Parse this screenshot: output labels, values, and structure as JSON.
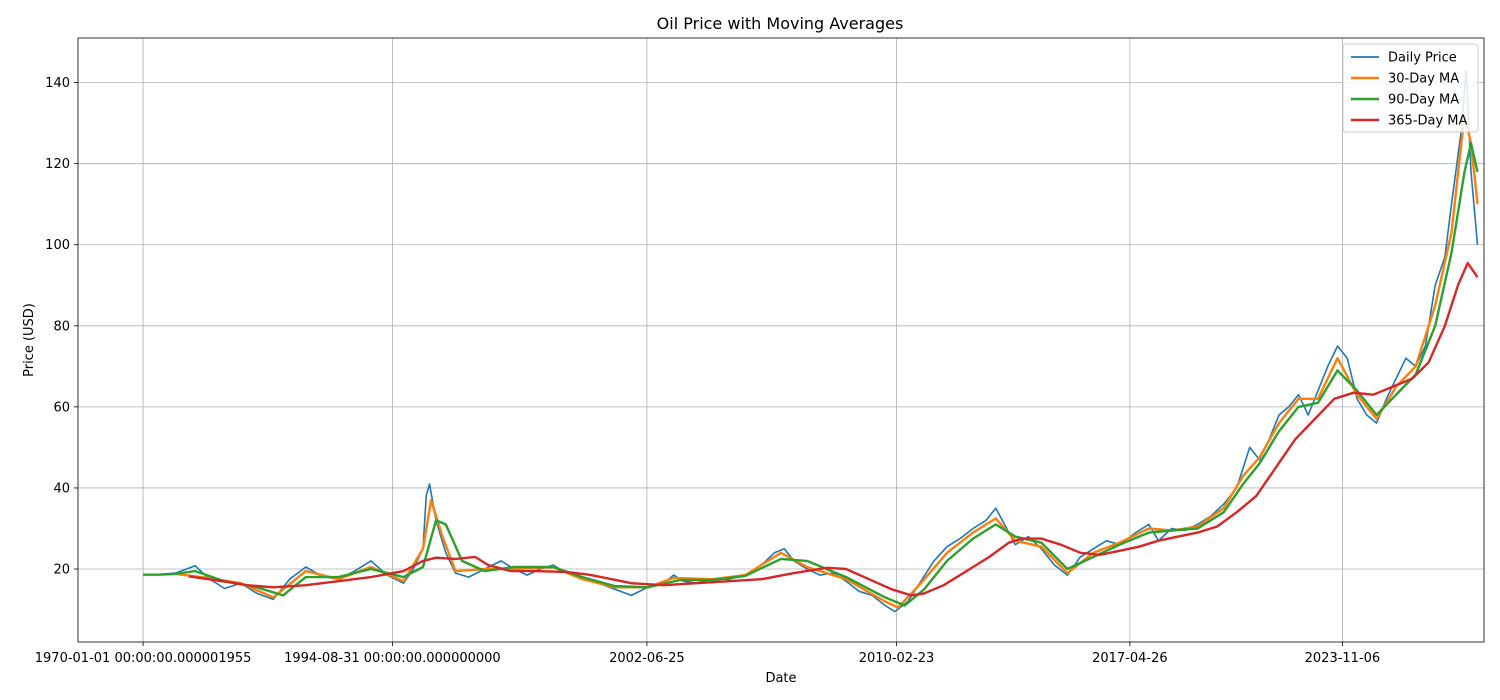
{
  "chart_data": {
    "type": "line",
    "title": "Oil Price with Moving Averages",
    "xlabel": "Date",
    "ylabel": "Price (USD)",
    "x_tick_labels": [
      "1970-01-01 00:00:00.000001955",
      "1994-08-31 00:00:00.000000000",
      "2002-06-25",
      "2010-02-23",
      "2017-04-26",
      "2023-11-06"
    ],
    "x_tick_values": [
      1987.0,
      1994.66,
      2002.48,
      2010.15,
      2017.32,
      2023.85
    ],
    "xlim": [
      1985.0,
      2028.2
    ],
    "ylim": [
      2,
      151
    ],
    "y_ticks": [
      20,
      40,
      60,
      80,
      100,
      120,
      140
    ],
    "grid": true,
    "legend_position": "top-right",
    "series": [
      {
        "name": "Daily Price",
        "color": "#1f77b4",
        "points": [
          [
            1987.0,
            18.6
          ],
          [
            1987.5,
            18.7
          ],
          [
            1988.0,
            19.0
          ],
          [
            1988.6,
            20.8
          ],
          [
            1989.0,
            17.8
          ],
          [
            1989.5,
            15.2
          ],
          [
            1990.0,
            16.5
          ],
          [
            1990.5,
            14.0
          ],
          [
            1991.0,
            12.5
          ],
          [
            1991.5,
            17.5
          ],
          [
            1992.0,
            20.5
          ],
          [
            1992.5,
            18.2
          ],
          [
            1993.0,
            17.5
          ],
          [
            1993.5,
            19.5
          ],
          [
            1994.0,
            22.0
          ],
          [
            1994.5,
            18.5
          ],
          [
            1995.0,
            16.5
          ],
          [
            1995.3,
            20.0
          ],
          [
            1995.6,
            25.0
          ],
          [
            1995.7,
            38.0
          ],
          [
            1995.8,
            41.0
          ],
          [
            1996.0,
            32.0
          ],
          [
            1996.3,
            24.0
          ],
          [
            1996.6,
            19.0
          ],
          [
            1997.0,
            18.0
          ],
          [
            1997.5,
            20.0
          ],
          [
            1998.0,
            22.0
          ],
          [
            1998.4,
            20.0
          ],
          [
            1998.8,
            18.5
          ],
          [
            1999.2,
            20.0
          ],
          [
            1999.6,
            21.0
          ],
          [
            2000.0,
            19.0
          ],
          [
            2000.5,
            17.5
          ],
          [
            2001.0,
            16.5
          ],
          [
            2001.5,
            15.0
          ],
          [
            2002.0,
            13.5
          ],
          [
            2002.5,
            15.5
          ],
          [
            2003.0,
            16.5
          ],
          [
            2003.3,
            18.5
          ],
          [
            2003.6,
            17.0
          ],
          [
            2004.0,
            16.5
          ],
          [
            2004.5,
            17.5
          ],
          [
            2005.0,
            17.5
          ],
          [
            2005.5,
            18.5
          ],
          [
            2006.0,
            21.0
          ],
          [
            2006.4,
            24.0
          ],
          [
            2006.7,
            25.0
          ],
          [
            2007.0,
            22.0
          ],
          [
            2007.4,
            20.0
          ],
          [
            2007.8,
            18.5
          ],
          [
            2008.2,
            19.0
          ],
          [
            2008.6,
            17.0
          ],
          [
            2009.0,
            14.5
          ],
          [
            2009.4,
            13.5
          ],
          [
            2009.8,
            11.0
          ],
          [
            2010.1,
            9.5
          ],
          [
            2010.5,
            12.0
          ],
          [
            2010.9,
            17.0
          ],
          [
            2011.3,
            22.0
          ],
          [
            2011.7,
            25.5
          ],
          [
            2012.1,
            27.5
          ],
          [
            2012.5,
            30.0
          ],
          [
            2012.9,
            32.0
          ],
          [
            2013.2,
            35.0
          ],
          [
            2013.5,
            30.5
          ],
          [
            2013.8,
            26.0
          ],
          [
            2014.2,
            28.0
          ],
          [
            2014.6,
            25.0
          ],
          [
            2015.0,
            21.0
          ],
          [
            2015.4,
            18.5
          ],
          [
            2015.8,
            23.0
          ],
          [
            2016.2,
            25.0
          ],
          [
            2016.6,
            27.0
          ],
          [
            2017.0,
            26.0
          ],
          [
            2017.5,
            29.0
          ],
          [
            2017.9,
            31.0
          ],
          [
            2018.2,
            27.0
          ],
          [
            2018.6,
            30.0
          ],
          [
            2019.0,
            29.5
          ],
          [
            2019.4,
            31.0
          ],
          [
            2019.8,
            33.0
          ],
          [
            2020.2,
            36.0
          ],
          [
            2020.6,
            40.0
          ],
          [
            2020.8,
            45.0
          ],
          [
            2021.0,
            50.0
          ],
          [
            2021.3,
            47.0
          ],
          [
            2021.6,
            52.0
          ],
          [
            2021.9,
            58.0
          ],
          [
            2022.2,
            60.0
          ],
          [
            2022.5,
            63.0
          ],
          [
            2022.8,
            58.0
          ],
          [
            2023.1,
            64.0
          ],
          [
            2023.4,
            70.0
          ],
          [
            2023.7,
            75.0
          ],
          [
            2024.0,
            72.0
          ],
          [
            2024.3,
            62.0
          ],
          [
            2024.6,
            58.0
          ],
          [
            2024.9,
            56.0
          ],
          [
            2025.2,
            62.0
          ],
          [
            2025.5,
            67.0
          ],
          [
            2025.8,
            72.0
          ],
          [
            2026.1,
            70.0
          ],
          [
            2026.4,
            75.0
          ],
          [
            2026.7,
            90.0
          ],
          [
            2027.0,
            97.0
          ],
          [
            2027.2,
            110.0
          ],
          [
            2027.5,
            128.0
          ],
          [
            2027.65,
            143.0
          ],
          [
            2027.8,
            118.0
          ],
          [
            2028.0,
            100.0
          ]
        ]
      },
      {
        "name": "30-Day MA",
        "color": "#ff7f0e",
        "points": [
          [
            1988.0,
            18.8
          ],
          [
            1989.0,
            17.8
          ],
          [
            1990.0,
            16.5
          ],
          [
            1991.0,
            13.0
          ],
          [
            1992.0,
            19.5
          ],
          [
            1993.0,
            17.5
          ],
          [
            1994.0,
            20.5
          ],
          [
            1995.0,
            17.0
          ],
          [
            1995.6,
            25.0
          ],
          [
            1995.85,
            37.0
          ],
          [
            1996.2,
            28.0
          ],
          [
            1996.6,
            19.5
          ],
          [
            1997.5,
            20.0
          ],
          [
            1998.4,
            20.0
          ],
          [
            1999.6,
            20.5
          ],
          [
            2000.5,
            17.5
          ],
          [
            2001.5,
            15.5
          ],
          [
            2002.5,
            15.5
          ],
          [
            2003.3,
            17.8
          ],
          [
            2004.5,
            17.5
          ],
          [
            2005.5,
            18.5
          ],
          [
            2006.6,
            24.0
          ],
          [
            2007.4,
            20.5
          ],
          [
            2008.6,
            17.5
          ],
          [
            2009.8,
            12.0
          ],
          [
            2010.2,
            10.5
          ],
          [
            2010.9,
            16.5
          ],
          [
            2011.7,
            24.0
          ],
          [
            2012.5,
            29.0
          ],
          [
            2013.2,
            32.5
          ],
          [
            2013.8,
            27.0
          ],
          [
            2014.6,
            25.5
          ],
          [
            2015.4,
            19.0
          ],
          [
            2016.2,
            24.0
          ],
          [
            2017.0,
            26.5
          ],
          [
            2017.9,
            30.0
          ],
          [
            2018.6,
            29.5
          ],
          [
            2019.4,
            30.5
          ],
          [
            2020.2,
            35.0
          ],
          [
            2020.8,
            43.0
          ],
          [
            2021.3,
            47.5
          ],
          [
            2021.9,
            56.0
          ],
          [
            2022.5,
            62.0
          ],
          [
            2023.1,
            62.0
          ],
          [
            2023.7,
            72.0
          ],
          [
            2024.3,
            63.0
          ],
          [
            2024.9,
            57.0
          ],
          [
            2025.5,
            65.0
          ],
          [
            2026.1,
            70.0
          ],
          [
            2026.7,
            85.0
          ],
          [
            2027.2,
            103.0
          ],
          [
            2027.6,
            132.0
          ],
          [
            2027.8,
            125.0
          ],
          [
            2028.0,
            110.0
          ]
        ]
      },
      {
        "name": "90-Day MA",
        "color": "#2ca02c",
        "points": [
          [
            1987.0,
            18.6
          ],
          [
            1987.5,
            18.6
          ],
          [
            1988.0,
            18.8
          ],
          [
            1988.6,
            19.5
          ],
          [
            1989.5,
            17.0
          ],
          [
            1990.5,
            15.5
          ],
          [
            1991.3,
            13.5
          ],
          [
            1992.0,
            18.0
          ],
          [
            1993.0,
            18.0
          ],
          [
            1994.0,
            20.0
          ],
          [
            1995.0,
            18.0
          ],
          [
            1995.6,
            20.5
          ],
          [
            1996.0,
            32.0
          ],
          [
            1996.3,
            31.0
          ],
          [
            1996.8,
            22.0
          ],
          [
            1997.5,
            19.5
          ],
          [
            1998.4,
            20.5
          ],
          [
            1999.6,
            20.5
          ],
          [
            2000.5,
            18.0
          ],
          [
            2001.5,
            15.8
          ],
          [
            2002.5,
            15.5
          ],
          [
            2003.5,
            17.3
          ],
          [
            2004.5,
            17.3
          ],
          [
            2005.5,
            18.3
          ],
          [
            2006.6,
            22.5
          ],
          [
            2007.4,
            22.0
          ],
          [
            2008.6,
            18.0
          ],
          [
            2009.8,
            13.0
          ],
          [
            2010.4,
            11.0
          ],
          [
            2011.0,
            15.0
          ],
          [
            2011.7,
            22.0
          ],
          [
            2012.5,
            27.5
          ],
          [
            2013.2,
            31.0
          ],
          [
            2013.8,
            28.0
          ],
          [
            2014.6,
            26.5
          ],
          [
            2015.4,
            20.0
          ],
          [
            2016.2,
            23.0
          ],
          [
            2017.0,
            26.0
          ],
          [
            2017.9,
            29.0
          ],
          [
            2018.6,
            29.5
          ],
          [
            2019.4,
            30.0
          ],
          [
            2020.2,
            34.0
          ],
          [
            2020.8,
            41.0
          ],
          [
            2021.3,
            46.0
          ],
          [
            2021.9,
            54.0
          ],
          [
            2022.5,
            60.0
          ],
          [
            2023.1,
            61.0
          ],
          [
            2023.7,
            69.0
          ],
          [
            2024.3,
            64.0
          ],
          [
            2024.9,
            58.0
          ],
          [
            2025.5,
            63.0
          ],
          [
            2026.1,
            68.0
          ],
          [
            2026.7,
            80.0
          ],
          [
            2027.2,
            98.0
          ],
          [
            2027.6,
            118.0
          ],
          [
            2027.8,
            125.0
          ],
          [
            2028.0,
            118.0
          ]
        ]
      },
      {
        "name": "365-Day MA",
        "color": "#d62728",
        "points": [
          [
            1988.4,
            18.2
          ],
          [
            1989.0,
            17.5
          ],
          [
            1989.6,
            16.8
          ],
          [
            1990.2,
            16.0
          ],
          [
            1991.0,
            15.5
          ],
          [
            1992.0,
            16.0
          ],
          [
            1993.0,
            17.0
          ],
          [
            1994.0,
            18.0
          ],
          [
            1995.0,
            19.5
          ],
          [
            1995.6,
            22.0
          ],
          [
            1996.0,
            22.8
          ],
          [
            1996.6,
            22.5
          ],
          [
            1997.2,
            23.0
          ],
          [
            1997.6,
            21.0
          ],
          [
            1998.3,
            19.5
          ],
          [
            1999.0,
            19.5
          ],
          [
            2000.0,
            19.3
          ],
          [
            2000.7,
            18.6
          ],
          [
            2001.4,
            17.5
          ],
          [
            2002.0,
            16.5
          ],
          [
            2003.0,
            16.0
          ],
          [
            2004.0,
            16.5
          ],
          [
            2005.0,
            17.0
          ],
          [
            2006.0,
            17.5
          ],
          [
            2007.0,
            19.0
          ],
          [
            2008.0,
            20.3
          ],
          [
            2008.6,
            20.0
          ],
          [
            2009.3,
            17.5
          ],
          [
            2010.0,
            15.0
          ],
          [
            2010.6,
            13.5
          ],
          [
            2011.0,
            14.0
          ],
          [
            2011.6,
            16.0
          ],
          [
            2012.3,
            19.5
          ],
          [
            2013.0,
            23.0
          ],
          [
            2013.6,
            26.5
          ],
          [
            2014.0,
            27.5
          ],
          [
            2014.6,
            27.5
          ],
          [
            2015.2,
            26.0
          ],
          [
            2015.8,
            24.0
          ],
          [
            2016.4,
            23.5
          ],
          [
            2017.0,
            24.5
          ],
          [
            2017.6,
            25.5
          ],
          [
            2018.2,
            27.0
          ],
          [
            2018.8,
            28.0
          ],
          [
            2019.4,
            29.0
          ],
          [
            2020.0,
            30.5
          ],
          [
            2020.6,
            34.0
          ],
          [
            2021.2,
            38.0
          ],
          [
            2021.8,
            45.0
          ],
          [
            2022.4,
            52.0
          ],
          [
            2023.0,
            57.0
          ],
          [
            2023.6,
            62.0
          ],
          [
            2024.2,
            63.5
          ],
          [
            2024.8,
            63.0
          ],
          [
            2025.4,
            65.0
          ],
          [
            2026.0,
            67.0
          ],
          [
            2026.5,
            71.0
          ],
          [
            2027.0,
            80.0
          ],
          [
            2027.4,
            90.0
          ],
          [
            2027.7,
            95.5
          ],
          [
            2028.0,
            92.0
          ]
        ]
      }
    ]
  }
}
